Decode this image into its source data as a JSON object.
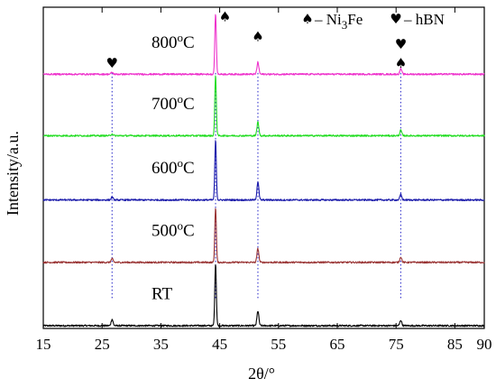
{
  "chart_data": {
    "type": "line",
    "xlabel": "2θ/°",
    "ylabel": "Intensity/a.u.",
    "xlim": [
      15,
      90
    ],
    "xticks": [
      15,
      25,
      35,
      45,
      55,
      65,
      75,
      85,
      90
    ],
    "y_ticks_shown": false,
    "grid": false,
    "legend": {
      "position": "top-right",
      "items": [
        {
          "symbol": "spade",
          "glyph": "♠",
          "text_main": "– Ni",
          "text_sub": "3",
          "text_tail": "Fe"
        },
        {
          "symbol": "heart",
          "glyph": "♥",
          "text_main": "– hBN"
        }
      ]
    },
    "reference_lines": {
      "x": [
        26.7,
        44.3,
        51.5,
        75.8
      ],
      "style": "dotted",
      "color": "#3333cc"
    },
    "markers": [
      {
        "symbol": "heart",
        "glyph": "♥",
        "x": 26.7,
        "series": "800"
      },
      {
        "symbol": "spade",
        "glyph": "♠",
        "x": 45.9,
        "series": "800"
      },
      {
        "symbol": "spade",
        "glyph": "♠",
        "x": 51.5,
        "series": "800"
      },
      {
        "symbol": "heart",
        "glyph": "♥",
        "x": 75.8,
        "series": "800",
        "stack": 1
      },
      {
        "symbol": "spade",
        "glyph": "♠",
        "x": 75.8,
        "series": "800",
        "stack": 0
      }
    ],
    "series": [
      {
        "label_main": "RT",
        "label_sup": "",
        "label_tail": "",
        "color": "#000000",
        "baseline": 0,
        "peaks": [
          {
            "x": 26.7,
            "height": 0.35
          },
          {
            "x": 44.3,
            "height": 3.4
          },
          {
            "x": 51.5,
            "height": 0.8
          },
          {
            "x": 75.8,
            "height": 0.3
          }
        ]
      },
      {
        "label_main": "500",
        "label_sup": "o",
        "label_tail": "C",
        "color": "#993333",
        "baseline": 3.45,
        "peaks": [
          {
            "x": 26.7,
            "height": 0.2
          },
          {
            "x": 44.3,
            "height": 3.0
          },
          {
            "x": 51.5,
            "height": 0.75
          },
          {
            "x": 75.8,
            "height": 0.3
          }
        ]
      },
      {
        "label_main": "600",
        "label_sup": "o",
        "label_tail": "C",
        "color": "#1a1aaa",
        "baseline": 6.85,
        "peaks": [
          {
            "x": 26.7,
            "height": 0.15
          },
          {
            "x": 44.3,
            "height": 3.25
          },
          {
            "x": 51.5,
            "height": 1.0
          },
          {
            "x": 75.8,
            "height": 0.3
          }
        ]
      },
      {
        "label_main": "700",
        "label_sup": "o",
        "label_tail": "C",
        "color": "#22dd22",
        "baseline": 10.35,
        "peaks": [
          {
            "x": 26.7,
            "height": 0.1
          },
          {
            "x": 44.3,
            "height": 3.3
          },
          {
            "x": 51.5,
            "height": 0.75
          },
          {
            "x": 75.8,
            "height": 0.3
          }
        ]
      },
      {
        "label_main": "800",
        "label_sup": "o",
        "label_tail": "C",
        "color": "#ee33cc",
        "baseline": 13.7,
        "peaks": [
          {
            "x": 26.7,
            "height": 0.1
          },
          {
            "x": 44.3,
            "height": 3.3
          },
          {
            "x": 51.5,
            "height": 0.65
          },
          {
            "x": 75.8,
            "height": 0.3
          }
        ]
      }
    ],
    "y_range": [
      -0.15,
      17.35
    ]
  }
}
